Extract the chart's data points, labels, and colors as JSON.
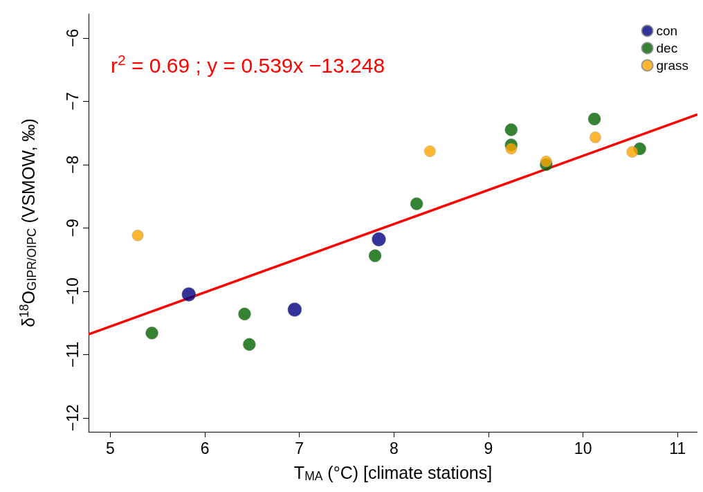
{
  "chart_data": {
    "type": "scatter",
    "xlabel": "T$_{MA}$ (°C) [climate stations]",
    "ylabel": "δ$^{18}$O$_{GIPR/OIPC}$ (VSMOW, ‰)",
    "annotations": [
      "r$^{2}$ = 0.69 ; y = 0.539x −13.248"
    ],
    "xlim": [
      4.77,
      11.21
    ],
    "xticks": [
      5,
      6,
      7,
      8,
      9,
      10,
      11
    ],
    "ylim": [
      -12.22,
      -5.62
    ],
    "yticks": [
      -12,
      -11,
      -10,
      -9,
      -8,
      -7,
      -6
    ],
    "grid": false,
    "legend": "top right",
    "marker": "circle",
    "series": [
      {
        "name": "con",
        "color": "#000080",
        "x": [
          5.83,
          6.95,
          7.84
        ],
        "values": [
          -10.05,
          -10.29,
          -9.18
        ]
      },
      {
        "name": "dec",
        "color": "#006400",
        "x": [
          5.44,
          6.42,
          6.47,
          7.8,
          8.24,
          9.24,
          9.24,
          9.61,
          10.12,
          10.6
        ],
        "values": [
          -10.66,
          -10.36,
          -10.84,
          -9.44,
          -8.62,
          -7.45,
          -7.69,
          -8.0,
          -7.28,
          -7.75
        ]
      },
      {
        "name": "grass",
        "color": "#ffa500",
        "x": [
          5.29,
          8.38,
          9.24,
          9.61,
          10.13,
          10.52
        ],
        "values": [
          -9.12,
          -7.79,
          -7.75,
          -7.95,
          -7.57,
          -7.8
        ]
      },
      {
        "type": "line",
        "color": "#ff0000",
        "x": [
          4.77,
          11.21
        ],
        "values": [
          -10.68,
          -7.21
        ],
        "marker": "none"
      }
    ]
  }
}
